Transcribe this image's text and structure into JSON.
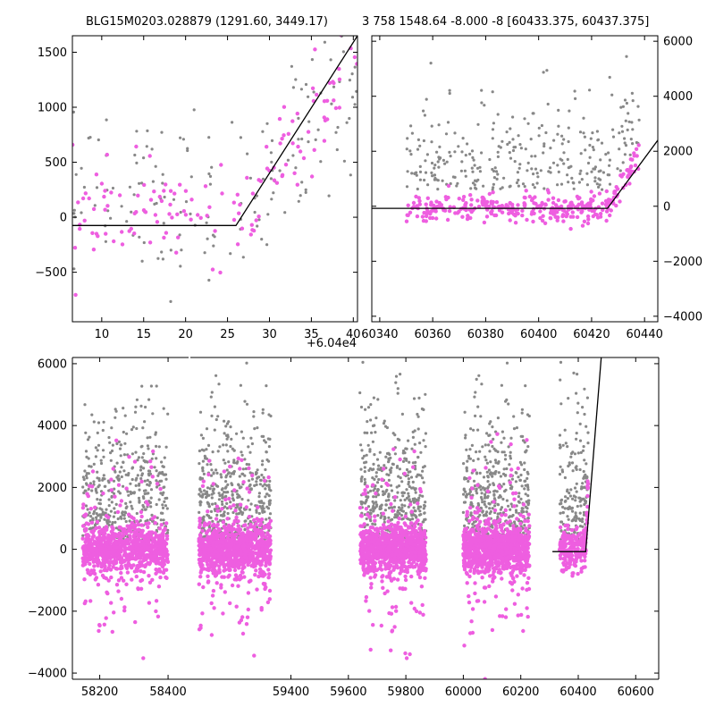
{
  "colors": {
    "grey": "#888888",
    "pink": "#ee5ee0",
    "fit": "#000000"
  },
  "chart_data": [
    {
      "type": "scatter",
      "title": "BLG15M0203.028879 (1291.60, 3449.17)",
      "x_offset_label": "+6.04e4",
      "xlim": [
        6.5,
        40.5
      ],
      "ylim": [
        -950,
        1650
      ],
      "xticks": [
        10,
        15,
        20,
        25,
        30,
        35,
        40
      ],
      "yticks": [
        -500,
        0,
        500,
        1000,
        1500
      ],
      "fit_line": [
        [
          6.5,
          -75
        ],
        [
          26,
          -75
        ],
        [
          40.5,
          1650
        ]
      ]
    },
    {
      "type": "scatter",
      "title": "3 758 1548.64 -8.000 -8 [60433.375, 60437.375]",
      "xlim": [
        60337,
        60445
      ],
      "ylim": [
        -4200,
        6200
      ],
      "xticks": [
        60340,
        60360,
        60380,
        60400,
        60420,
        60440
      ],
      "yticks": [
        -4000,
        -2000,
        0,
        2000,
        4000,
        6000
      ],
      "fit_line": [
        [
          60337,
          -75
        ],
        [
          60426,
          -75
        ],
        [
          60445,
          2400
        ]
      ]
    },
    {
      "type": "scatter",
      "xlim": [
        58120,
        58460
      ],
      "xlim_right": [
        59050,
        60680
      ],
      "ylim": [
        -4200,
        6200
      ],
      "xticks": [
        58200,
        58400,
        59400,
        59600,
        59800,
        60000,
        60200,
        60400,
        60600
      ],
      "yticks": [
        -4000,
        -2000,
        0,
        2000,
        4000,
        6000
      ],
      "seasons": [
        {
          "xrange": [
            58150,
            58400
          ],
          "n_grey": 430,
          "n_pink": 900
        },
        {
          "xrange": [
            59080,
            59330
          ],
          "n_grey": 470,
          "n_pink": 950
        },
        {
          "xrange": [
            59640,
            59870
          ],
          "n_grey": 440,
          "n_pink": 900
        },
        {
          "xrange": [
            60000,
            60230
          ],
          "n_grey": 460,
          "n_pink": 950
        },
        {
          "xrange": [
            60335,
            60435
          ],
          "n_grey": 170,
          "n_pink": 220
        }
      ],
      "fit_line": [
        [
          60310,
          -75
        ],
        [
          60426,
          -75
        ],
        [
          60480,
          6200
        ]
      ]
    }
  ]
}
